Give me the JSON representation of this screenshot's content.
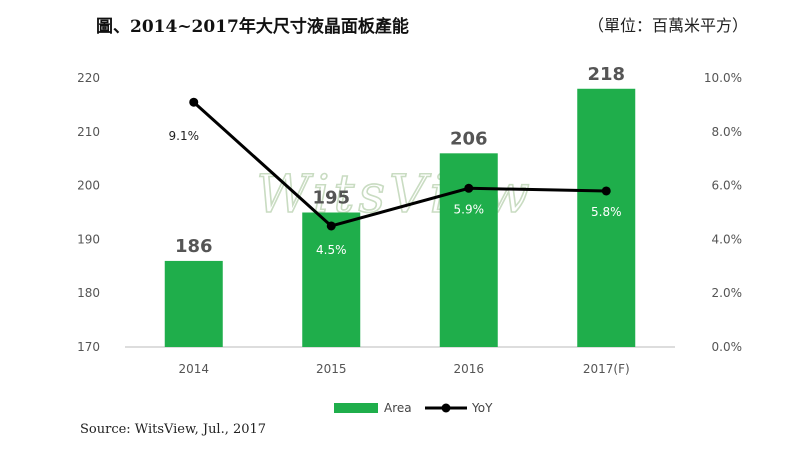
{
  "header": {
    "title": "圖、2014~2017年大尺寸液晶面板產能",
    "unit": "（單位：百萬米平方）"
  },
  "footer": {
    "source": "Source: WitsView, Jul., 2017"
  },
  "watermark": "WitsView",
  "chart_data": {
    "type": "bar",
    "categories": [
      "2014",
      "2015",
      "2016",
      "2017(F)"
    ],
    "series": [
      {
        "name": "Area",
        "type": "bar",
        "axis": "left",
        "values": [
          186,
          195,
          206,
          218
        ],
        "labels": [
          "186",
          "195",
          "206",
          "218"
        ],
        "color": "#1fae4b"
      },
      {
        "name": "YoY",
        "type": "line",
        "axis": "right",
        "values": [
          9.1,
          4.5,
          5.9,
          5.8
        ],
        "labels": [
          "9.1%",
          "4.5%",
          "5.9%",
          "5.8%"
        ],
        "color": "#000000"
      }
    ],
    "y_left": {
      "ylim": [
        170,
        220
      ],
      "ticks": [
        "170",
        "180",
        "190",
        "200",
        "210",
        "220"
      ]
    },
    "y_right": {
      "ylim": [
        0,
        10
      ],
      "ticks": [
        "0.0%",
        "2.0%",
        "4.0%",
        "6.0%",
        "8.0%",
        "10.0%"
      ]
    },
    "xlabel": "",
    "ylabel": "",
    "grid": false,
    "legend": "bottom"
  }
}
